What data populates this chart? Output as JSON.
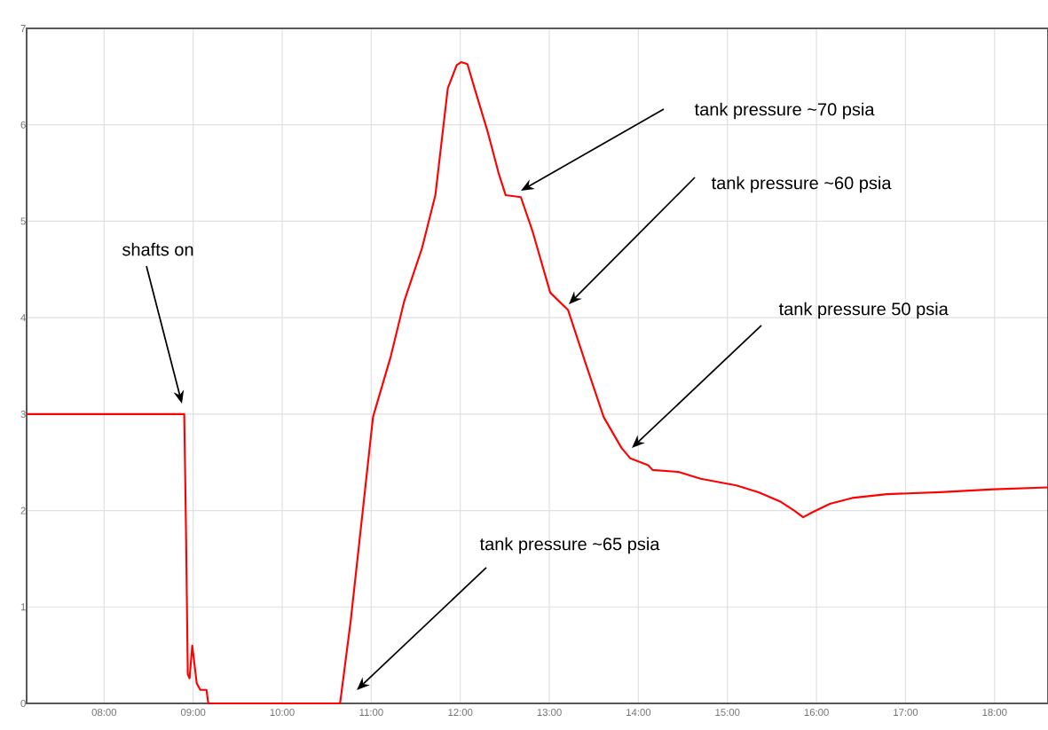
{
  "chart_data": {
    "type": "line",
    "x": [
      7.13,
      8.9,
      8.92,
      8.94,
      8.96,
      8.99,
      9.04,
      9.08,
      9.15,
      9.17,
      10.65,
      10.77,
      11.02,
      11.22,
      11.37,
      11.57,
      11.72,
      11.86,
      11.96,
      12.01,
      12.08,
      12.16,
      12.31,
      12.43,
      12.51,
      12.68,
      12.81,
      13.01,
      13.21,
      13.41,
      13.61,
      13.81,
      13.91,
      14.11,
      14.16,
      14.45,
      14.7,
      15.1,
      15.35,
      15.6,
      15.75,
      15.85,
      15.95,
      16.15,
      16.4,
      16.79,
      17.39,
      17.99,
      18.6
    ],
    "series": [
      {
        "color": "#ff0000",
        "values": [
          3.0,
          3.0,
          1.78,
          0.3,
          0.26,
          0.6,
          0.21,
          0.14,
          0.14,
          0,
          0,
          0.86,
          2.97,
          3.6,
          4.17,
          4.72,
          5.27,
          6.38,
          6.62,
          6.65,
          6.63,
          6.38,
          5.92,
          5.5,
          5.27,
          5.25,
          4.9,
          4.26,
          4.08,
          3.52,
          2.97,
          2.65,
          2.54,
          2.47,
          2.42,
          2.4,
          2.33,
          2.26,
          2.19,
          2.09,
          2.0,
          1.93,
          1.98,
          2.07,
          2.13,
          2.17,
          2.19,
          2.22,
          2.24
        ]
      }
    ],
    "xlim": [
      7.13,
      18.6
    ],
    "xticks": [
      {
        "value": 8,
        "label": "08:00"
      },
      {
        "value": 9,
        "label": "09:00"
      },
      {
        "value": 10,
        "label": "10:00"
      },
      {
        "value": 11,
        "label": "11:00"
      },
      {
        "value": 12,
        "label": "12:00"
      },
      {
        "value": 13,
        "label": "13:00"
      },
      {
        "value": 14,
        "label": "14:00"
      },
      {
        "value": 15,
        "label": "15:00"
      },
      {
        "value": 16,
        "label": "16:00"
      },
      {
        "value": 17,
        "label": "17:00"
      },
      {
        "value": 18,
        "label": "18:00"
      }
    ],
    "ylim": [
      0,
      7
    ],
    "yticks": [
      0,
      1,
      2,
      3,
      4,
      5,
      6,
      7
    ],
    "grid": true,
    "marker": "none",
    "line_style": "solid",
    "annotations": [
      "shafts on",
      "tank pressure ~65 psia",
      "tank pressure ~70 psia",
      "tank pressure ~60 psia",
      "tank pressure 50 psia"
    ]
  }
}
